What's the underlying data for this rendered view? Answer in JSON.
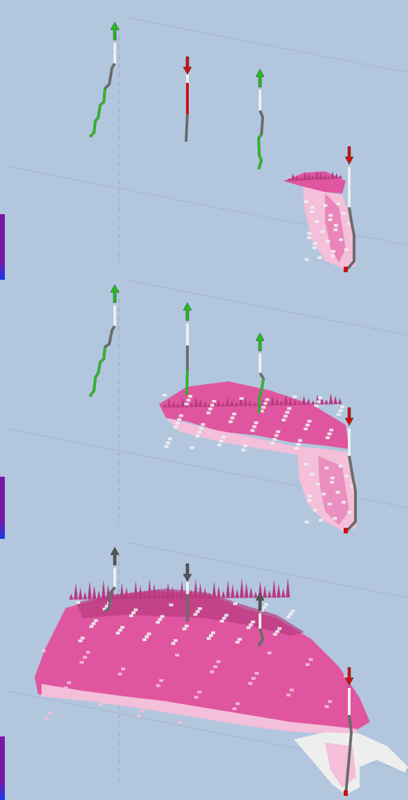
{
  "colors": {
    "background": "#b2c6de",
    "grid_line": "#8c99a8",
    "plume": "#e0559f",
    "plume_dark": "#b83a80",
    "plume_light": "#f3bfd9",
    "well_gray": "#6b6b6b",
    "well_white": "#eeeeee",
    "injector": "#22c01e",
    "producer": "#cc1111",
    "inactive": "#555555",
    "scale_bar_top": "#7a18a6",
    "scale_bar_bottom": "#1638e6"
  },
  "icons": {
    "injection_arrow": "arrow-up-icon",
    "production_arrow": "arrow-down-icon"
  },
  "panels": [
    {
      "name": "timestep-1",
      "plume_extent": "small",
      "wells": [
        {
          "id": "well-a",
          "arrow": "up",
          "status": "injector"
        },
        {
          "id": "well-b",
          "arrow": "down",
          "status": "producer"
        },
        {
          "id": "well-c",
          "arrow": "up",
          "status": "injector"
        },
        {
          "id": "well-d",
          "arrow": "down",
          "status": "producer"
        }
      ]
    },
    {
      "name": "timestep-2",
      "plume_extent": "medium",
      "wells": [
        {
          "id": "well-a",
          "arrow": "up",
          "status": "injector"
        },
        {
          "id": "well-b",
          "arrow": "up",
          "status": "injector"
        },
        {
          "id": "well-c",
          "arrow": "up",
          "status": "injector"
        },
        {
          "id": "well-d",
          "arrow": "down",
          "status": "producer"
        }
      ]
    },
    {
      "name": "timestep-3",
      "plume_extent": "large",
      "wells": [
        {
          "id": "well-a",
          "arrow": "up",
          "status": "inactive"
        },
        {
          "id": "well-b",
          "arrow": "down",
          "status": "inactive"
        },
        {
          "id": "well-c",
          "arrow": "up",
          "status": "inactive"
        },
        {
          "id": "well-d",
          "arrow": "down",
          "status": "producer"
        }
      ]
    }
  ]
}
